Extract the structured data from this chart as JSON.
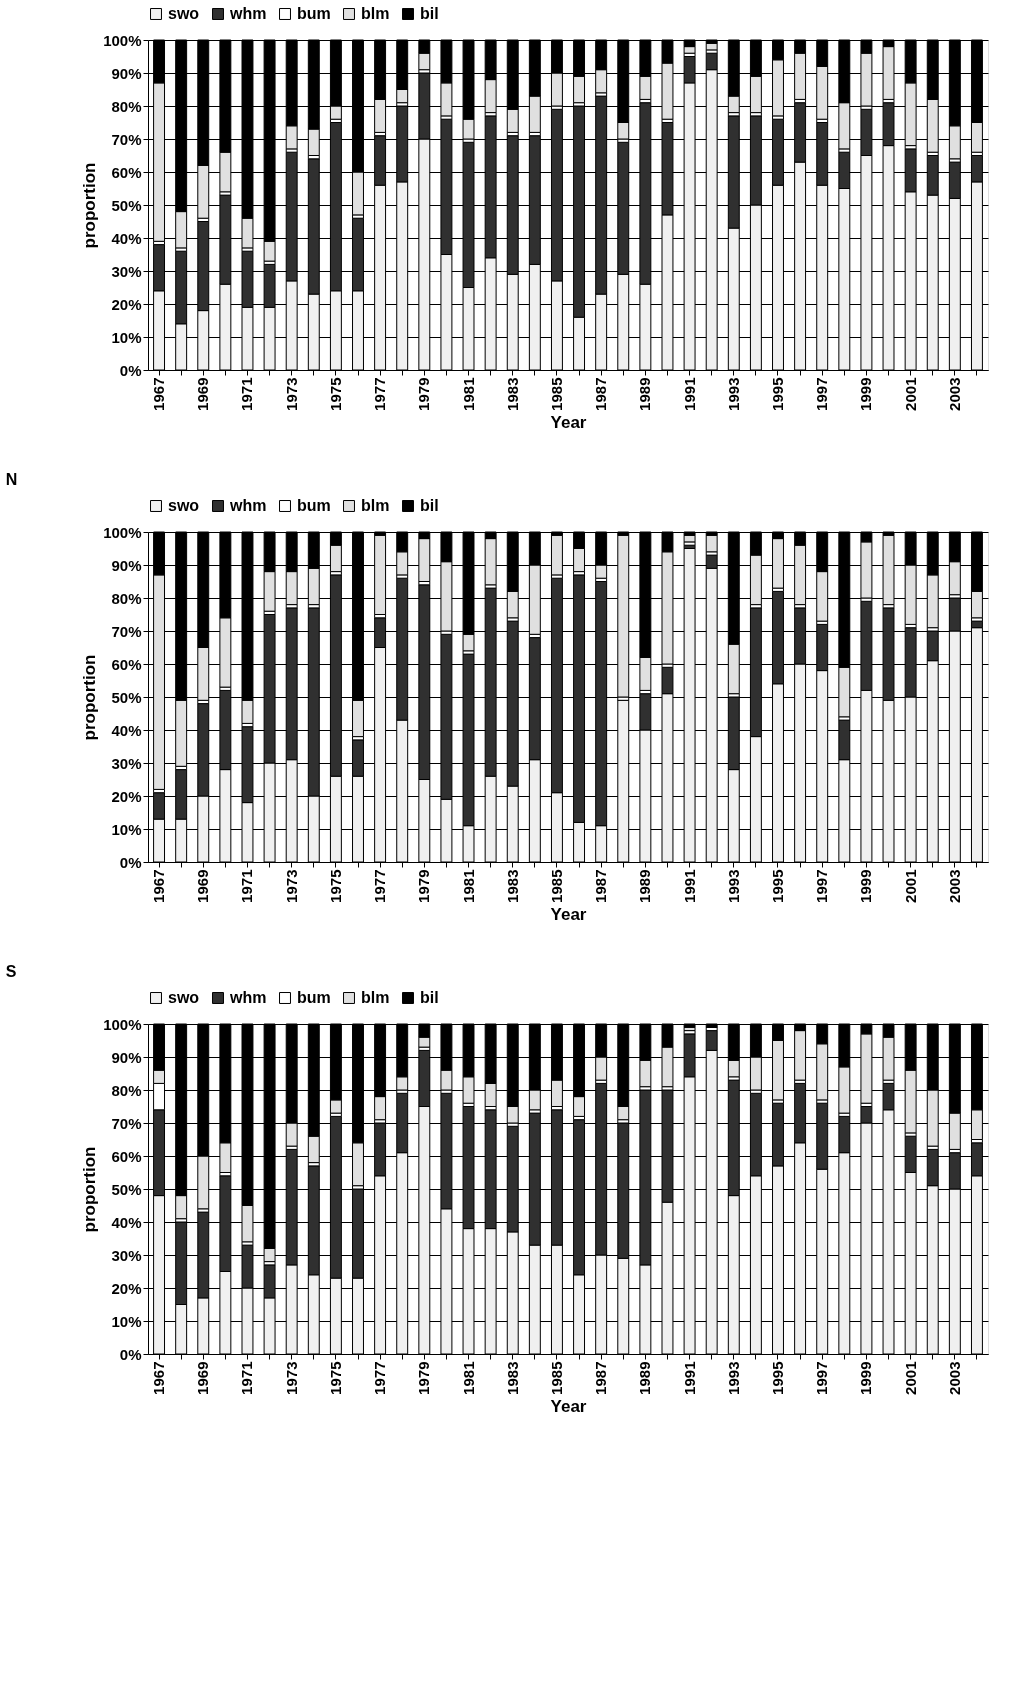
{
  "chart_data": [
    {
      "type": "bar",
      "stacked": true,
      "xlabel": "Year",
      "ylabel": "proportion",
      "legend": "top",
      "grid": "y",
      "categories": [
        "1967",
        null,
        "1969",
        null,
        "1971",
        null,
        "1973",
        null,
        "1975",
        null,
        "1977",
        null,
        "1979",
        null,
        "1981",
        null,
        "1983",
        null,
        "1985",
        null,
        "1987",
        null,
        "1989",
        null,
        "1991",
        null,
        "1993",
        null,
        "1995",
        null,
        "1997",
        null,
        "1999",
        null,
        "2001",
        null,
        "2003",
        null
      ],
      "ylim": [
        0,
        100
      ],
      "yticks": [
        {
          "value": 0,
          "label": "0%"
        },
        {
          "value": 10,
          "label": "10%"
        },
        {
          "value": 20,
          "label": "20%"
        },
        {
          "value": 30,
          "label": "30%"
        },
        {
          "value": 40,
          "label": "40%"
        },
        {
          "value": 50,
          "label": "50%"
        },
        {
          "value": 60,
          "label": "60%"
        },
        {
          "value": 70,
          "label": "70%"
        },
        {
          "value": 80,
          "label": "80%"
        },
        {
          "value": 90,
          "label": "90%"
        },
        {
          "value": 100,
          "label": "100%"
        }
      ],
      "series": [
        {
          "name": "swo",
          "color": "#f0f0f0",
          "values": [
            24,
            14,
            18,
            26,
            19,
            19,
            27,
            23,
            24,
            24,
            56,
            57,
            70,
            35,
            25,
            34,
            29,
            32,
            27,
            16,
            23,
            29,
            26,
            47,
            87,
            91,
            43,
            50,
            56,
            63,
            56,
            55,
            65,
            68,
            54,
            53,
            52,
            57
          ]
        },
        {
          "name": "whm",
          "color": "#303030",
          "values": [
            14,
            22,
            27,
            27,
            17,
            13,
            39,
            41,
            51,
            22,
            15,
            23,
            20,
            41,
            44,
            43,
            42,
            39,
            52,
            64,
            60,
            40,
            55,
            28,
            8,
            5,
            34,
            27,
            20,
            18,
            19,
            11,
            14,
            13,
            13,
            12,
            11,
            8
          ]
        },
        {
          "name": "bum",
          "color": "#ffffff",
          "values": [
            1,
            1,
            1,
            1,
            1,
            1,
            1,
            1,
            1,
            1,
            1,
            1,
            1,
            1,
            1,
            1,
            1,
            1,
            1,
            1,
            1,
            1,
            1,
            1,
            1,
            1,
            1,
            1,
            1,
            1,
            1,
            1,
            1,
            1,
            1,
            1,
            1,
            1
          ]
        },
        {
          "name": "blm",
          "color": "#e0e0e0",
          "values": [
            48,
            11,
            16,
            12,
            9,
            6,
            7,
            8,
            4,
            13,
            10,
            4,
            5,
            10,
            6,
            10,
            7,
            11,
            10,
            8,
            7,
            5,
            7,
            17,
            2,
            2,
            5,
            11,
            17,
            14,
            16,
            14,
            16,
            16,
            19,
            16,
            10,
            9
          ]
        },
        {
          "name": "bil",
          "color": "#000000",
          "values": [
            13,
            52,
            38,
            34,
            54,
            61,
            26,
            27,
            20,
            40,
            18,
            15,
            4,
            13,
            24,
            12,
            21,
            17,
            10,
            11,
            9,
            25,
            11,
            7,
            2,
            1,
            17,
            11,
            6,
            4,
            8,
            19,
            4,
            2,
            13,
            18,
            26,
            25
          ]
        }
      ]
    },
    {
      "type": "bar",
      "stacked": true,
      "title": "N",
      "xlabel": "Year",
      "ylabel": "proportion",
      "legend": "top",
      "grid": "y",
      "categories": [
        "1967",
        null,
        "1969",
        null,
        "1971",
        null,
        "1973",
        null,
        "1975",
        null,
        "1977",
        null,
        "1979",
        null,
        "1981",
        null,
        "1983",
        null,
        "1985",
        null,
        "1987",
        null,
        "1989",
        null,
        "1991",
        null,
        "1993",
        null,
        "1995",
        null,
        "1997",
        null,
        "1999",
        null,
        "2001",
        null,
        "2003",
        null
      ],
      "ylim": [
        0,
        100
      ],
      "yticks": [
        {
          "value": 0,
          "label": "0%"
        },
        {
          "value": 10,
          "label": "10%"
        },
        {
          "value": 20,
          "label": "20%"
        },
        {
          "value": 30,
          "label": "30%"
        },
        {
          "value": 40,
          "label": "40%"
        },
        {
          "value": 50,
          "label": "50%"
        },
        {
          "value": 60,
          "label": "60%"
        },
        {
          "value": 70,
          "label": "70%"
        },
        {
          "value": 80,
          "label": "80%"
        },
        {
          "value": 90,
          "label": "90%"
        },
        {
          "value": 100,
          "label": "100%"
        }
      ],
      "series": [
        {
          "name": "swo",
          "color": "#f0f0f0",
          "values": [
            13,
            13,
            20,
            28,
            18,
            30,
            31,
            20,
            26,
            26,
            65,
            43,
            25,
            19,
            11,
            26,
            23,
            31,
            21,
            12,
            11,
            49,
            40,
            51,
            95,
            89,
            28,
            38,
            54,
            60,
            58,
            31,
            52,
            49,
            50,
            61,
            70,
            71
          ]
        },
        {
          "name": "whm",
          "color": "#303030",
          "values": [
            8,
            15,
            28,
            24,
            23,
            45,
            46,
            57,
            61,
            11,
            9,
            43,
            59,
            50,
            52,
            57,
            50,
            37,
            65,
            75,
            74,
            0,
            11,
            8,
            1,
            4,
            22,
            39,
            28,
            17,
            14,
            12,
            27,
            28,
            21,
            9,
            10,
            2
          ]
        },
        {
          "name": "bum",
          "color": "#ffffff",
          "values": [
            1,
            1,
            1,
            1,
            1,
            1,
            1,
            1,
            1,
            1,
            1,
            1,
            1,
            1,
            1,
            1,
            1,
            1,
            1,
            1,
            1,
            1,
            1,
            1,
            1,
            1,
            1,
            1,
            1,
            1,
            1,
            1,
            1,
            1,
            1,
            1,
            1,
            1
          ]
        },
        {
          "name": "blm",
          "color": "#e0e0e0",
          "values": [
            65,
            20,
            16,
            21,
            7,
            12,
            10,
            11,
            8,
            11,
            24,
            7,
            13,
            21,
            5,
            14,
            8,
            21,
            12,
            7,
            4,
            49,
            10,
            34,
            2,
            5,
            15,
            15,
            15,
            18,
            15,
            15,
            17,
            21,
            18,
            16,
            10,
            8
          ]
        },
        {
          "name": "bil",
          "color": "#000000",
          "values": [
            13,
            51,
            35,
            26,
            51,
            12,
            12,
            11,
            4,
            51,
            1,
            6,
            2,
            9,
            31,
            2,
            18,
            10,
            1,
            5,
            10,
            1,
            38,
            6,
            1,
            1,
            34,
            7,
            2,
            4,
            12,
            41,
            3,
            1,
            10,
            13,
            9,
            18
          ]
        }
      ]
    },
    {
      "type": "bar",
      "stacked": true,
      "title": "S",
      "xlabel": "Year",
      "ylabel": "proportion",
      "legend": "top",
      "grid": "y",
      "categories": [
        "1967",
        null,
        "1969",
        null,
        "1971",
        null,
        "1973",
        null,
        "1975",
        null,
        "1977",
        null,
        "1979",
        null,
        "1981",
        null,
        "1983",
        null,
        "1985",
        null,
        "1987",
        null,
        "1989",
        null,
        "1991",
        null,
        "1993",
        null,
        "1995",
        null,
        "1997",
        null,
        "1999",
        null,
        "2001",
        null,
        "2003",
        null
      ],
      "ylim": [
        0,
        100
      ],
      "yticks": [
        {
          "value": 0,
          "label": "0%"
        },
        {
          "value": 10,
          "label": "10%"
        },
        {
          "value": 20,
          "label": "20%"
        },
        {
          "value": 30,
          "label": "30%"
        },
        {
          "value": 40,
          "label": "40%"
        },
        {
          "value": 50,
          "label": "50%"
        },
        {
          "value": 60,
          "label": "60%"
        },
        {
          "value": 70,
          "label": "70%"
        },
        {
          "value": 80,
          "label": "80%"
        },
        {
          "value": 90,
          "label": "90%"
        },
        {
          "value": 100,
          "label": "100%"
        }
      ],
      "series": [
        {
          "name": "swo",
          "color": "#f0f0f0",
          "values": [
            48,
            15,
            17,
            25,
            20,
            17,
            27,
            24,
            23,
            23,
            54,
            61,
            75,
            44,
            38,
            38,
            37,
            33,
            33,
            24,
            30,
            29,
            27,
            46,
            84,
            92,
            48,
            54,
            57,
            64,
            56,
            61,
            70,
            74,
            55,
            51,
            50,
            54
          ]
        },
        {
          "name": "whm",
          "color": "#303030",
          "values": [
            26,
            25,
            26,
            29,
            13,
            10,
            35,
            33,
            49,
            27,
            16,
            18,
            17,
            35,
            37,
            36,
            32,
            40,
            41,
            47,
            52,
            41,
            53,
            34,
            13,
            6,
            35,
            25,
            19,
            18,
            20,
            11,
            5,
            8,
            11,
            11,
            11,
            10
          ]
        },
        {
          "name": "bum",
          "color": "#ffffff",
          "values": [
            8,
            1,
            1,
            1,
            1,
            1,
            1,
            1,
            1,
            1,
            1,
            1,
            1,
            1,
            1,
            1,
            1,
            1,
            1,
            1,
            1,
            1,
            1,
            1,
            1,
            1,
            1,
            1,
            1,
            1,
            1,
            1,
            1,
            1,
            1,
            1,
            1,
            1
          ]
        },
        {
          "name": "blm",
          "color": "#e0e0e0",
          "values": [
            4,
            7,
            16,
            9,
            11,
            4,
            7,
            8,
            4,
            13,
            7,
            4,
            3,
            6,
            8,
            7,
            5,
            6,
            8,
            6,
            7,
            4,
            8,
            12,
            1,
            0,
            5,
            10,
            18,
            15,
            17,
            14,
            21,
            13,
            19,
            17,
            11,
            9
          ]
        },
        {
          "name": "bil",
          "color": "#000000",
          "values": [
            14,
            52,
            40,
            36,
            55,
            68,
            30,
            34,
            23,
            36,
            22,
            16,
            4,
            14,
            16,
            18,
            25,
            20,
            17,
            22,
            10,
            25,
            11,
            7,
            1,
            1,
            11,
            10,
            5,
            2,
            6,
            13,
            3,
            4,
            14,
            20,
            27,
            26
          ]
        }
      ]
    }
  ]
}
